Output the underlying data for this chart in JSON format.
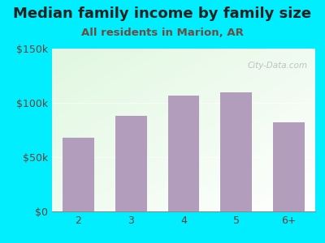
{
  "title": "Median family income by family size",
  "subtitle": "All residents in Marion, AR",
  "categories": [
    "2",
    "3",
    "4",
    "5",
    "6+"
  ],
  "values": [
    68000,
    88000,
    107000,
    110000,
    82000
  ],
  "bar_color": "#b39dbd",
  "ylim": [
    0,
    150000
  ],
  "yticks": [
    0,
    50000,
    100000,
    150000
  ],
  "ytick_labels": [
    "$0",
    "$50k",
    "$100k",
    "$150k"
  ],
  "background_outer": "#00eeff",
  "title_color": "#222222",
  "subtitle_color": "#6d4c41",
  "axis_label_color": "#5d4037",
  "watermark": "City-Data.com",
  "title_fontsize": 13,
  "subtitle_fontsize": 9.5,
  "tick_fontsize": 9
}
